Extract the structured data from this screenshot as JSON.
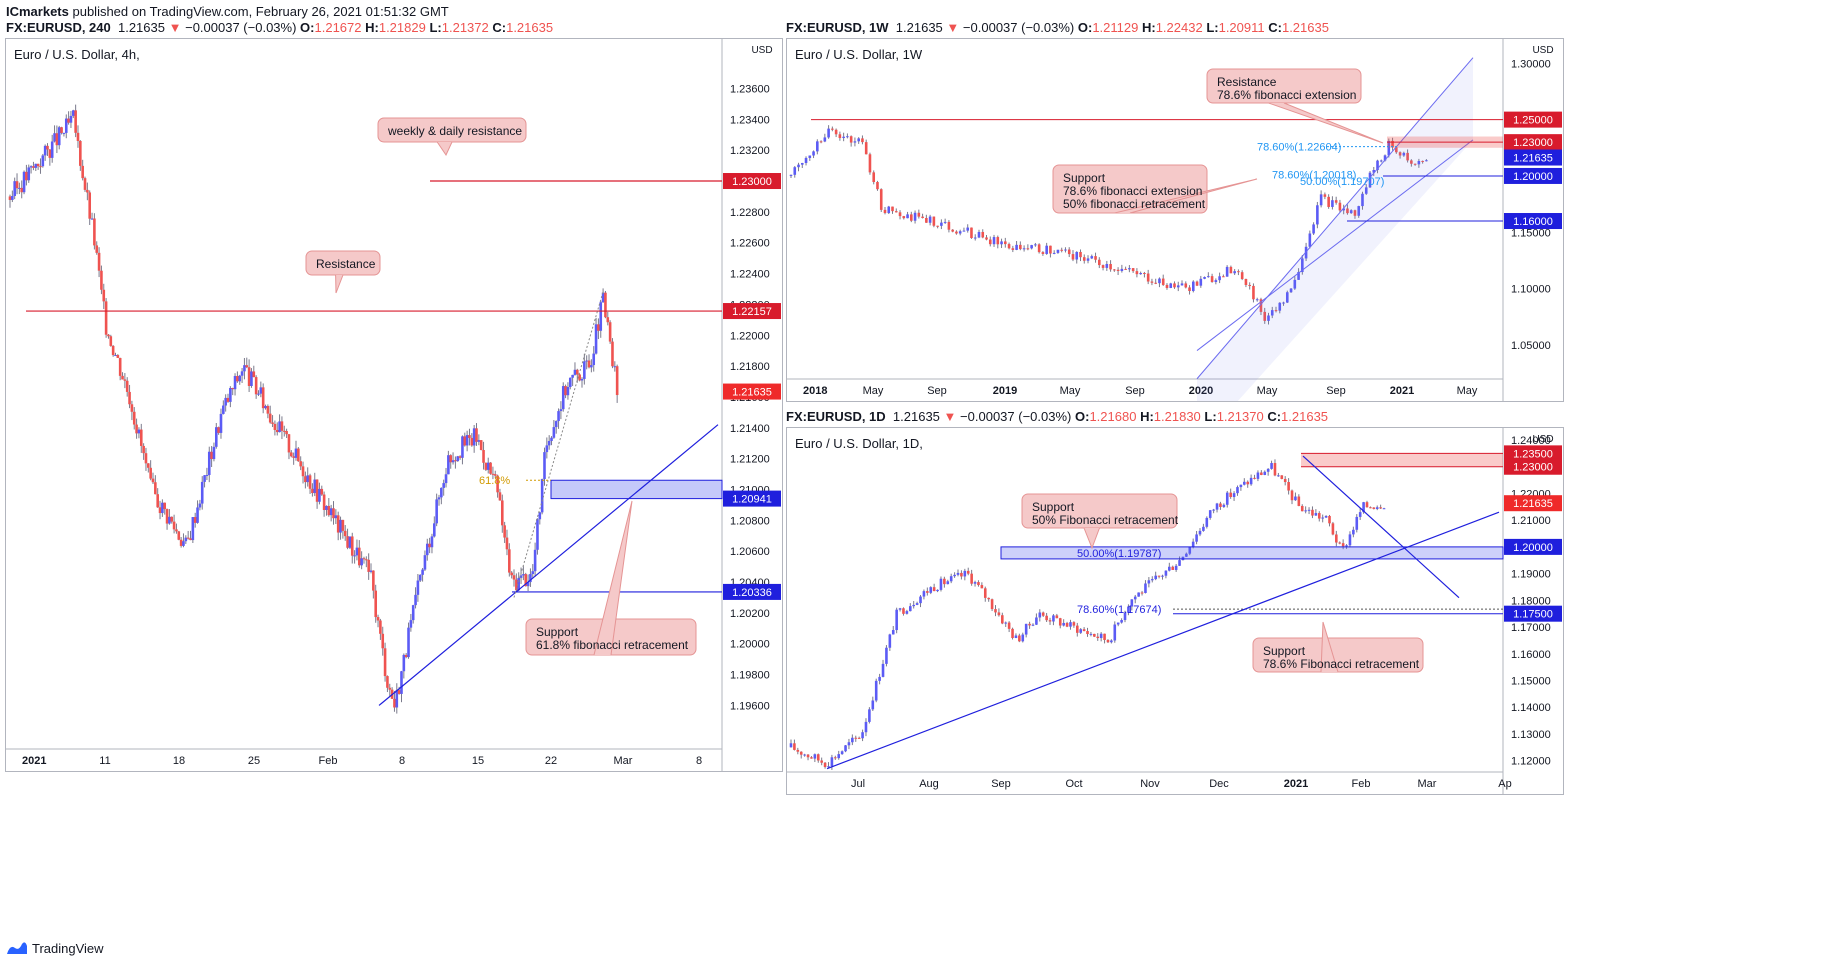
{
  "publisher": {
    "name": "ICmarkets",
    "text": " published on TradingView.com, February 26, 2021 01:51:32 GMT"
  },
  "brand": {
    "label": "TradingView"
  },
  "colors": {
    "up": "#5b5bf5",
    "down": "#ef5350",
    "support": "#1f1fdd",
    "resistance": "#d81b2c",
    "callout_bg": "#f5c9c9",
    "callout_border": "#e59494"
  },
  "chart_data": [
    {
      "id": "h4",
      "type": "candlestick",
      "header": {
        "symbol": "FX:EURUSD, 240",
        "last": "1.21635",
        "change": "−0.00037 (−0.03%)",
        "o": "1.21672",
        "h": "1.21829",
        "l": "1.21372",
        "c": "1.21635"
      },
      "title": "Euro / U.S. Dollar, 4h,",
      "currency": "USD",
      "ylim": [
        1.1935,
        1.2383
      ],
      "y_ticks": [
        "1.19600",
        "1.19800",
        "1.20000",
        "1.20200",
        "1.20400",
        "1.20600",
        "1.20800",
        "1.21000",
        "1.21200",
        "1.21400",
        "1.21600",
        "1.21800",
        "1.22000",
        "1.22200",
        "1.22400",
        "1.22600",
        "1.22800",
        "1.23000",
        "1.23200",
        "1.23400",
        "1.23600"
      ],
      "x_ticks": [
        "2021",
        "11",
        "18",
        "25",
        "Feb",
        "8",
        "15",
        "22",
        "Mar",
        "8"
      ],
      "price_path": [
        [
          0,
          1.229
        ],
        [
          0.09,
          1.234
        ],
        [
          0.12,
          1.226
        ],
        [
          0.135,
          1.2208
        ],
        [
          0.17,
          1.216
        ],
        [
          0.2,
          1.21
        ],
        [
          0.25,
          1.2063
        ],
        [
          0.3,
          1.215
        ],
        [
          0.33,
          1.218
        ],
        [
          0.38,
          1.214
        ],
        [
          0.42,
          1.211
        ],
        [
          0.46,
          1.208
        ],
        [
          0.51,
          1.2045
        ],
        [
          0.535,
          1.1975
        ],
        [
          0.545,
          1.196
        ],
        [
          0.58,
          1.204
        ],
        [
          0.62,
          1.212
        ],
        [
          0.66,
          1.2135
        ],
        [
          0.69,
          1.21
        ],
        [
          0.71,
          1.204
        ],
        [
          0.74,
          1.2045
        ],
        [
          0.76,
          1.213
        ],
        [
          0.79,
          1.217
        ],
        [
          0.82,
          1.218
        ],
        [
          0.84,
          1.2222
        ],
        [
          0.848,
          1.22
        ],
        [
          0.86,
          1.2163
        ]
      ],
      "price_tags": [
        {
          "label": "1.23000",
          "value": 1.23,
          "color": "#d81b2c"
        },
        {
          "label": "1.22157",
          "value": 1.22157,
          "color": "#d81b2c"
        },
        {
          "label": "1.21635",
          "value": 1.21635,
          "color": "#ef2a2a"
        },
        {
          "label": "1.20941",
          "value": 1.20941,
          "color": "#1f1fdd"
        },
        {
          "label": "1.20336",
          "value": 1.20336,
          "color": "#1f1fdd"
        }
      ],
      "fib_label": "61.8%",
      "callouts": [
        {
          "lines": [
            "weekly & daily resistance"
          ]
        },
        {
          "lines": [
            "Resistance"
          ]
        },
        {
          "lines": [
            "Support",
            "61.8% fibonacci retracement"
          ]
        }
      ]
    },
    {
      "id": "w1",
      "type": "candlestick",
      "header": {
        "symbol": "FX:EURUSD, 1W",
        "last": "1.21635",
        "change": "−0.00037 (−0.03%)",
        "o": "1.21129",
        "h": "1.22432",
        "l": "1.20911",
        "c": "1.21635"
      },
      "title": "Euro / U.S. Dollar, 1W",
      "currency": "USD",
      "ylim": [
        1.018,
        1.318
      ],
      "y_ticks": [
        "1.05000",
        "1.10000",
        "1.15000",
        "1.20000",
        "1.25000",
        "1.30000"
      ],
      "x_ticks": [
        "2018",
        "May",
        "Sep",
        "2019",
        "May",
        "Sep",
        "2020",
        "May",
        "Sep",
        "2021",
        "May"
      ],
      "price_path": [
        [
          0,
          1.2
        ],
        [
          0.05,
          1.24
        ],
        [
          0.1,
          1.23
        ],
        [
          0.13,
          1.17
        ],
        [
          0.2,
          1.16
        ],
        [
          0.25,
          1.15
        ],
        [
          0.3,
          1.14
        ],
        [
          0.4,
          1.13
        ],
        [
          0.5,
          1.11
        ],
        [
          0.56,
          1.1
        ],
        [
          0.6,
          1.11
        ],
        [
          0.63,
          1.12
        ],
        [
          0.65,
          1.1
        ],
        [
          0.67,
          1.075
        ],
        [
          0.7,
          1.09
        ],
        [
          0.72,
          1.12
        ],
        [
          0.75,
          1.18
        ],
        [
          0.78,
          1.17
        ],
        [
          0.8,
          1.165
        ],
        [
          0.82,
          1.2
        ],
        [
          0.85,
          1.23
        ],
        [
          0.88,
          1.21
        ],
        [
          0.9,
          1.2163
        ]
      ],
      "price_tags": [
        {
          "label": "1.25000",
          "value": 1.25,
          "color": "#d81b2c"
        },
        {
          "label": "1.23000",
          "value": 1.23,
          "color": "#d81b2c"
        },
        {
          "label": "1.21635",
          "value": 1.21635,
          "color": "#1f1fdd"
        },
        {
          "label": "1.20000",
          "value": 1.2,
          "color": "#1f1fdd"
        },
        {
          "label": "1.16000",
          "value": 1.16,
          "color": "#1f1fdd"
        }
      ],
      "fib_labels": [
        "78.60%(1.22604)",
        "78.60%(1.20018)",
        "50.00%(1.19707)"
      ],
      "callouts": [
        {
          "lines": [
            "Resistance",
            "78.6% fibonacci extension"
          ]
        },
        {
          "lines": [
            "Support",
            "78.6% fibonacci extension",
            "50% fibonacci retracement"
          ]
        }
      ]
    },
    {
      "id": "d1",
      "type": "candlestick",
      "header": {
        "symbol": "FX:EURUSD, 1D",
        "last": "1.21635",
        "change": "−0.00037 (−0.03%)",
        "o": "1.21680",
        "h": "1.21830",
        "l": "1.21370",
        "c": "1.21635"
      },
      "title": "Euro / U.S. Dollar, 1D,",
      "currency": "USD",
      "ylim": [
        1.115,
        1.243
      ],
      "y_ticks": [
        "1.12000",
        "1.13000",
        "1.14000",
        "1.15000",
        "1.16000",
        "1.17000",
        "1.18000",
        "1.19000",
        "1.20000",
        "1.21000",
        "1.22000",
        "1.23000",
        "1.24000"
      ],
      "x_ticks": [
        "Jul",
        "Aug",
        "Sep",
        "Oct",
        "Nov",
        "Dec",
        "2021",
        "Feb",
        "Mar",
        "Ap"
      ],
      "price_path": [
        [
          0,
          1.125
        ],
        [
          0.05,
          1.119
        ],
        [
          0.1,
          1.13
        ],
        [
          0.15,
          1.175
        ],
        [
          0.2,
          1.185
        ],
        [
          0.25,
          1.19
        ],
        [
          0.28,
          1.18
        ],
        [
          0.32,
          1.165
        ],
        [
          0.35,
          1.175
        ],
        [
          0.4,
          1.17
        ],
        [
          0.45,
          1.165
        ],
        [
          0.48,
          1.18
        ],
        [
          0.55,
          1.195
        ],
        [
          0.6,
          1.215
        ],
        [
          0.65,
          1.225
        ],
        [
          0.68,
          1.23
        ],
        [
          0.72,
          1.215
        ],
        [
          0.76,
          1.21
        ],
        [
          0.78,
          1.198
        ],
        [
          0.81,
          1.215
        ],
        [
          0.84,
          1.2163
        ]
      ],
      "price_tags": [
        {
          "label": "1.23500",
          "value": 1.235,
          "color": "#d81b2c"
        },
        {
          "label": "1.23000",
          "value": 1.23,
          "color": "#d81b2c"
        },
        {
          "label": "1.21635",
          "value": 1.21635,
          "color": "#ef2a2a"
        },
        {
          "label": "1.20000",
          "value": 1.2,
          "color": "#1f1fdd"
        },
        {
          "label": "1.17500",
          "value": 1.175,
          "color": "#1f1fdd"
        }
      ],
      "fib_labels": [
        "50.00%(1.19787)",
        "78.60%(1.17674)"
      ],
      "callouts": [
        {
          "lines": [
            "Support",
            "50% Fibonacci retracement"
          ]
        },
        {
          "lines": [
            "Support",
            "78.6% Fibonacci retracement"
          ]
        }
      ]
    }
  ]
}
